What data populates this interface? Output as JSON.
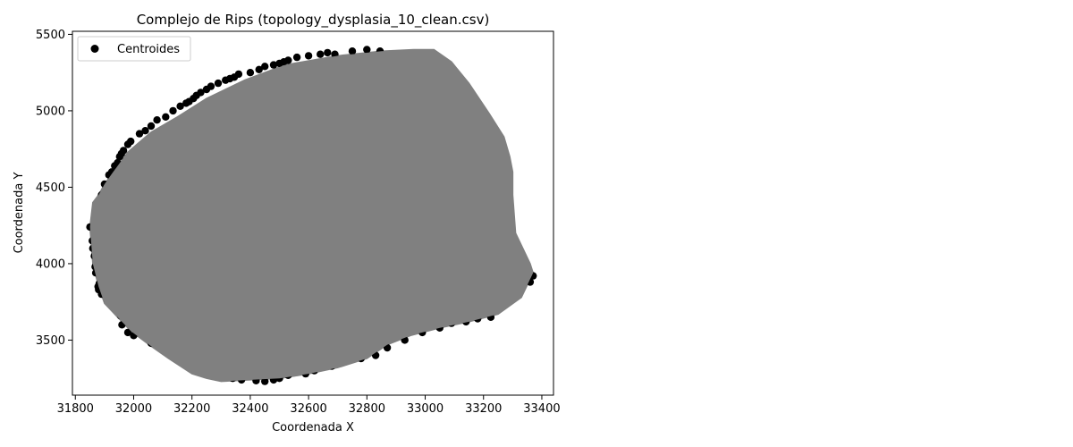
{
  "chart_data": {
    "type": "scatter",
    "title": "Complejo de Rips (topology_dysplasia_10_clean.csv)",
    "xlabel": "Coordenada X",
    "ylabel": "Coordenada Y",
    "xlim": [
      31790,
      33440
    ],
    "ylim": [
      3140,
      5520
    ],
    "xticks": [
      31800,
      32000,
      32200,
      32400,
      32600,
      32800,
      33000,
      33200,
      33400
    ],
    "yticks": [
      3500,
      4000,
      4500,
      5000,
      5500
    ],
    "grid": false,
    "legend": {
      "position": "top-left",
      "entries": [
        "Centroides"
      ]
    },
    "colors": {
      "points": "#000000",
      "edges": "#808080"
    },
    "series": [
      {
        "name": "Centroides",
        "kind": "points",
        "x": [
          31850,
          31858,
          31860,
          31865,
          31868,
          31870,
          31878,
          31882,
          31890,
          31900,
          31915,
          31925,
          31935,
          31945,
          31952,
          31958,
          31965,
          31980,
          31990,
          32020,
          32040,
          32060,
          32080,
          32110,
          32135,
          32160,
          32180,
          32190,
          32205,
          32215,
          32230,
          32250,
          32265,
          32290,
          32315,
          32330,
          32345,
          32360,
          32400,
          32430,
          32450,
          32480,
          32500,
          32515,
          32530,
          32560,
          32600,
          32640,
          32665,
          32690,
          32750,
          32800,
          32845,
          32880,
          32940,
          32980,
          33010,
          33020,
          33080,
          33110,
          33130,
          33170,
          33200,
          33220,
          33240,
          33260,
          33275,
          33285,
          33290,
          33295,
          33305,
          33320,
          33345,
          33355,
          33360,
          33370,
          33225,
          33180,
          33140,
          33090,
          33050,
          32990,
          32930,
          32870,
          32830,
          32780,
          32720,
          32680,
          32620,
          32590,
          32530,
          32500,
          32480,
          32450,
          32420,
          32370,
          32340,
          32300,
          32260,
          32235,
          32200,
          32150,
          32100,
          32060,
          32000,
          31980,
          31960,
          31955,
          31940,
          31910,
          31890,
          31880
        ],
        "y": [
          4240,
          4150,
          4100,
          4050,
          3980,
          3940,
          3850,
          3870,
          4450,
          4520,
          4580,
          4600,
          4640,
          4660,
          4700,
          4720,
          4740,
          4780,
          4800,
          4850,
          4870,
          4900,
          4940,
          4960,
          5000,
          5030,
          5050,
          5060,
          5080,
          5100,
          5120,
          5140,
          5160,
          5180,
          5200,
          5210,
          5220,
          5240,
          5250,
          5270,
          5290,
          5300,
          5310,
          5320,
          5330,
          5350,
          5360,
          5370,
          5380,
          5370,
          5390,
          5400,
          5390,
          5360,
          5300,
          5250,
          5200,
          5230,
          5150,
          5100,
          5050,
          5000,
          4950,
          4850,
          4700,
          4580,
          4400,
          4350,
          4280,
          4180,
          4100,
          4000,
          3960,
          3940,
          3880,
          3920,
          3650,
          3640,
          3620,
          3610,
          3580,
          3550,
          3500,
          3450,
          3400,
          3380,
          3360,
          3330,
          3300,
          3280,
          3270,
          3250,
          3240,
          3230,
          3235,
          3240,
          3250,
          3260,
          3280,
          3300,
          3340,
          3380,
          3440,
          3480,
          3530,
          3550,
          3600,
          3660,
          3700,
          3760,
          3800,
          3830
        ]
      },
      {
        "name": "",
        "kind": "edges-hull",
        "x": [
          31850,
          31860,
          31880,
          31900,
          31930,
          31980,
          32060,
          32150,
          32250,
          32380,
          32520,
          32700,
          32850,
          32960,
          33030,
          33090,
          33150,
          33220,
          33270,
          33290,
          33300,
          33300,
          33310,
          33360,
          33370,
          33330,
          33250,
          33150,
          33050,
          32950,
          32870,
          32800,
          32700,
          32600,
          32500,
          32400,
          32300,
          32250,
          32200,
          32120,
          32060,
          31990,
          31950,
          31900,
          31880,
          31860
        ],
        "y": [
          4240,
          4400,
          4450,
          4520,
          4600,
          4730,
          4860,
          4960,
          5080,
          5200,
          5300,
          5360,
          5390,
          5400,
          5400,
          5320,
          5180,
          4980,
          4830,
          4700,
          4600,
          4450,
          4200,
          4000,
          3940,
          3780,
          3670,
          3620,
          3580,
          3530,
          3470,
          3380,
          3320,
          3280,
          3250,
          3240,
          3230,
          3250,
          3280,
          3380,
          3460,
          3560,
          3640,
          3740,
          3850,
          4000
        ]
      }
    ]
  }
}
